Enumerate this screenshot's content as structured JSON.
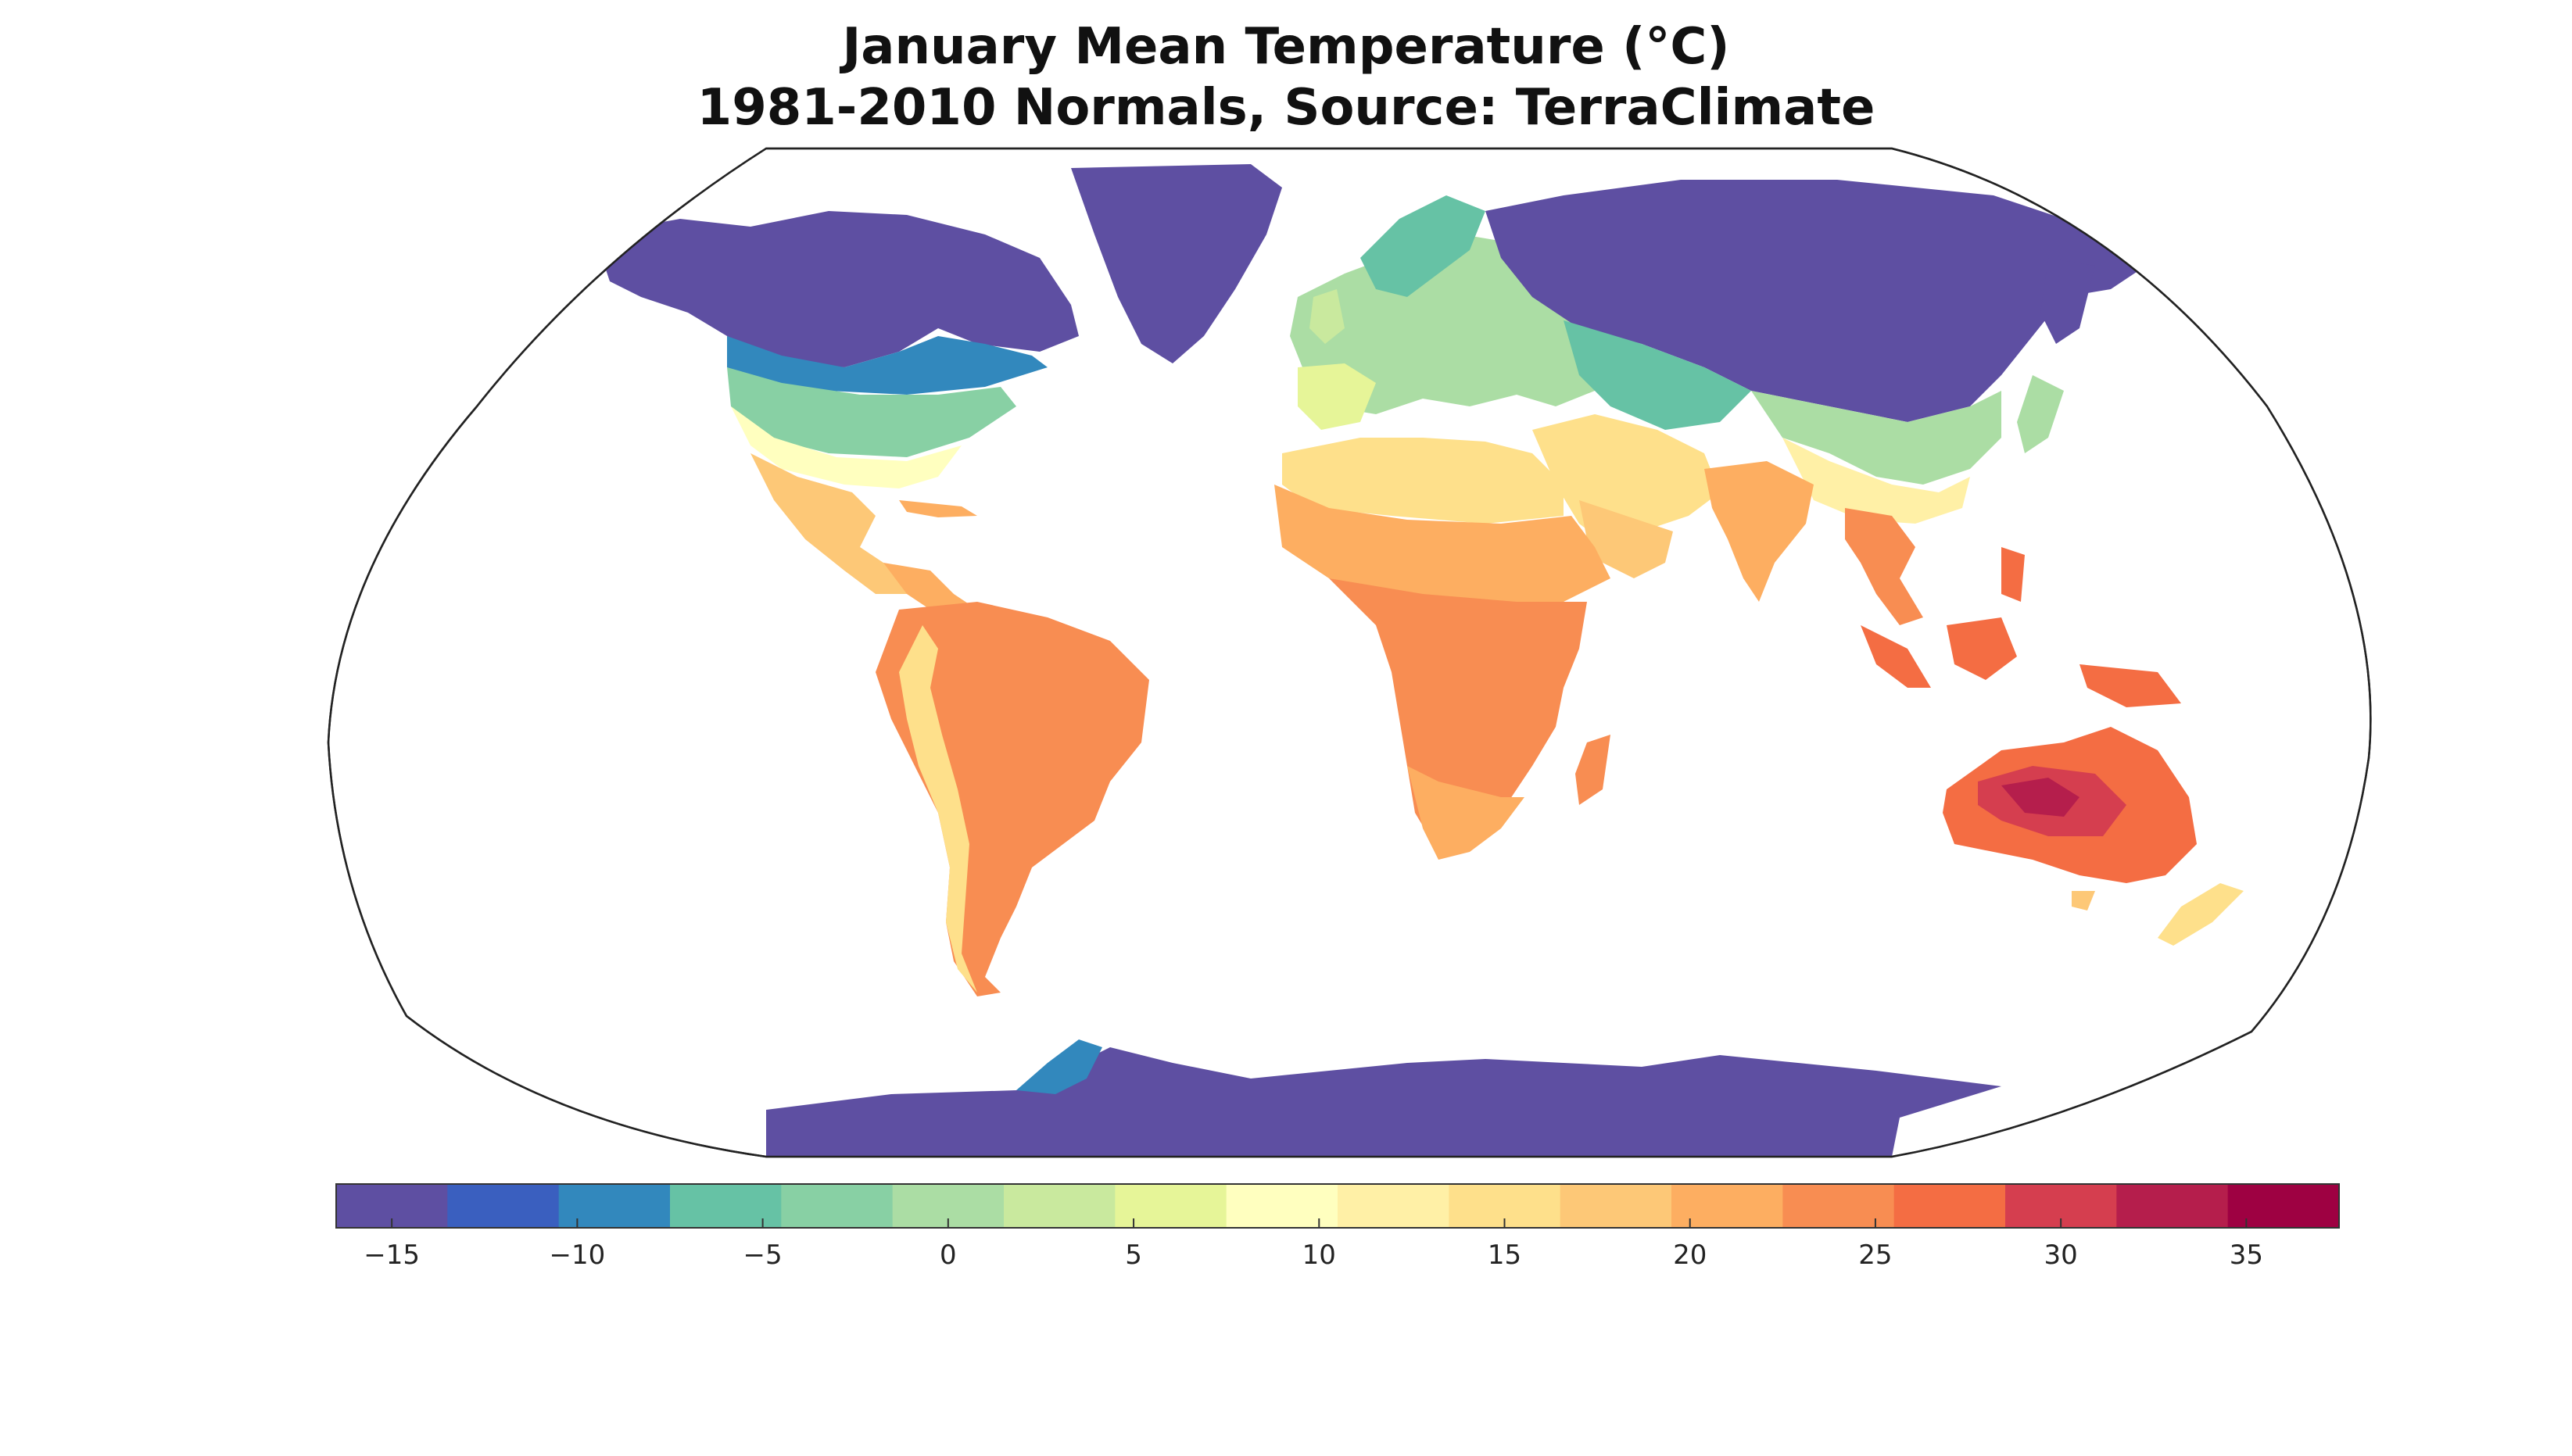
{
  "title": {
    "line1": "January Mean Temperature (°C)",
    "line2": "1981-2010 Normals,  Source: TerraClimate"
  },
  "map": {
    "projection": "Robinson",
    "variable": "January mean temperature",
    "units": "°C",
    "colors": {
      "ocean": "#ffffff",
      "frame": "#222222",
      "borders": "#1a1a1a"
    }
  },
  "colorbar": {
    "min": -16.5,
    "max": 37.5,
    "step": 3,
    "ticks": [
      -15,
      -10,
      -5,
      0,
      5,
      10,
      15,
      20,
      25,
      30,
      35
    ],
    "tick_labels": [
      "−15",
      "−10",
      "−5",
      "0",
      "5",
      "10",
      "15",
      "20",
      "25",
      "30",
      "35"
    ],
    "colors": [
      "#5e4fa2",
      "#3a5fbf",
      "#3288bd",
      "#66c2a5",
      "#88d0a4",
      "#abdda4",
      "#c9e99e",
      "#e6f598",
      "#ffffbf",
      "#fff0a6",
      "#fee08b",
      "#fdc877",
      "#fdae61",
      "#f88d52",
      "#f46d43",
      "#d53e4f",
      "#b51e4c",
      "#9e0142"
    ]
  }
}
